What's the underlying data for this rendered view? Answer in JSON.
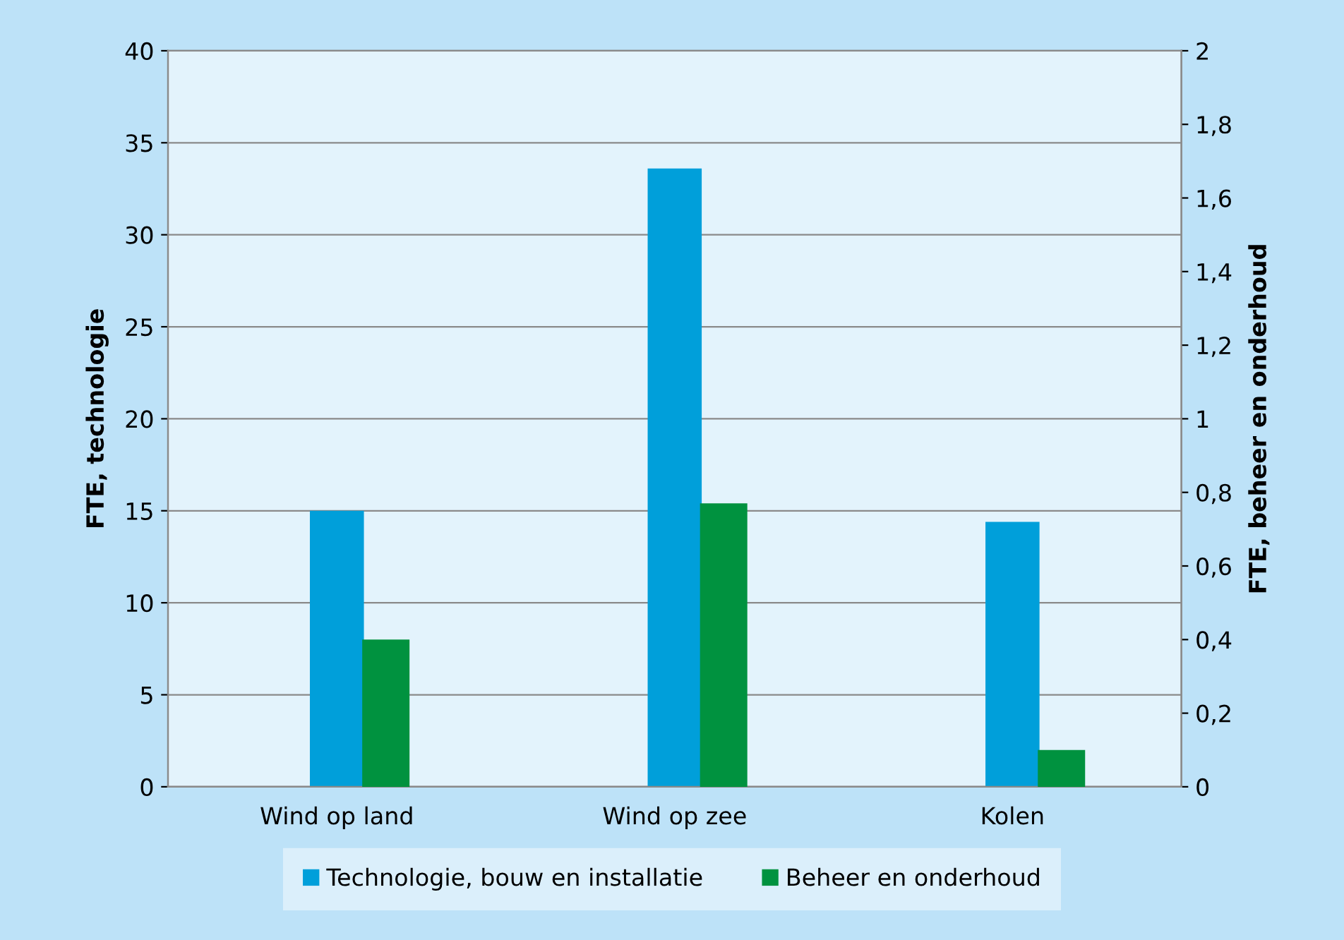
{
  "chart_data": {
    "type": "bar",
    "categories": [
      "Wind op land",
      "Wind op zee",
      "Kolen"
    ],
    "ylabel": "FTE, technologie",
    "y2label": "FTE, beheer en onderhoud",
    "series": [
      {
        "name": "Technologie, bouw en installatie",
        "color": "#009fda",
        "values": [
          15,
          33.6,
          14.4
        ]
      },
      {
        "name": "Beheer en onderhoud",
        "color": "#00923f",
        "values": [
          0.4,
          0.77,
          0.1
        ],
        "axis": "y2"
      }
    ],
    "ylim": [
      0,
      40
    ],
    "yticks": [
      0,
      5,
      10,
      15,
      20,
      25,
      30,
      35,
      40
    ],
    "y2lim": [
      0,
      2
    ],
    "y2ticks": [
      0,
      {
        "value": 0.2,
        "label": "0,2"
      },
      {
        "value": 0.4,
        "label": "0,4"
      },
      {
        "value": 0.6,
        "label": "0,6"
      },
      {
        "value": 0.8,
        "label": "0,8"
      },
      1,
      {
        "value": 1.2,
        "label": "1,2"
      },
      {
        "value": 1.4,
        "label": "1,4"
      },
      {
        "value": 1.6,
        "label": "1,6"
      },
      {
        "value": 1.8,
        "label": "1,8"
      },
      2
    ],
    "grid": "y",
    "legend": "bottom"
  }
}
